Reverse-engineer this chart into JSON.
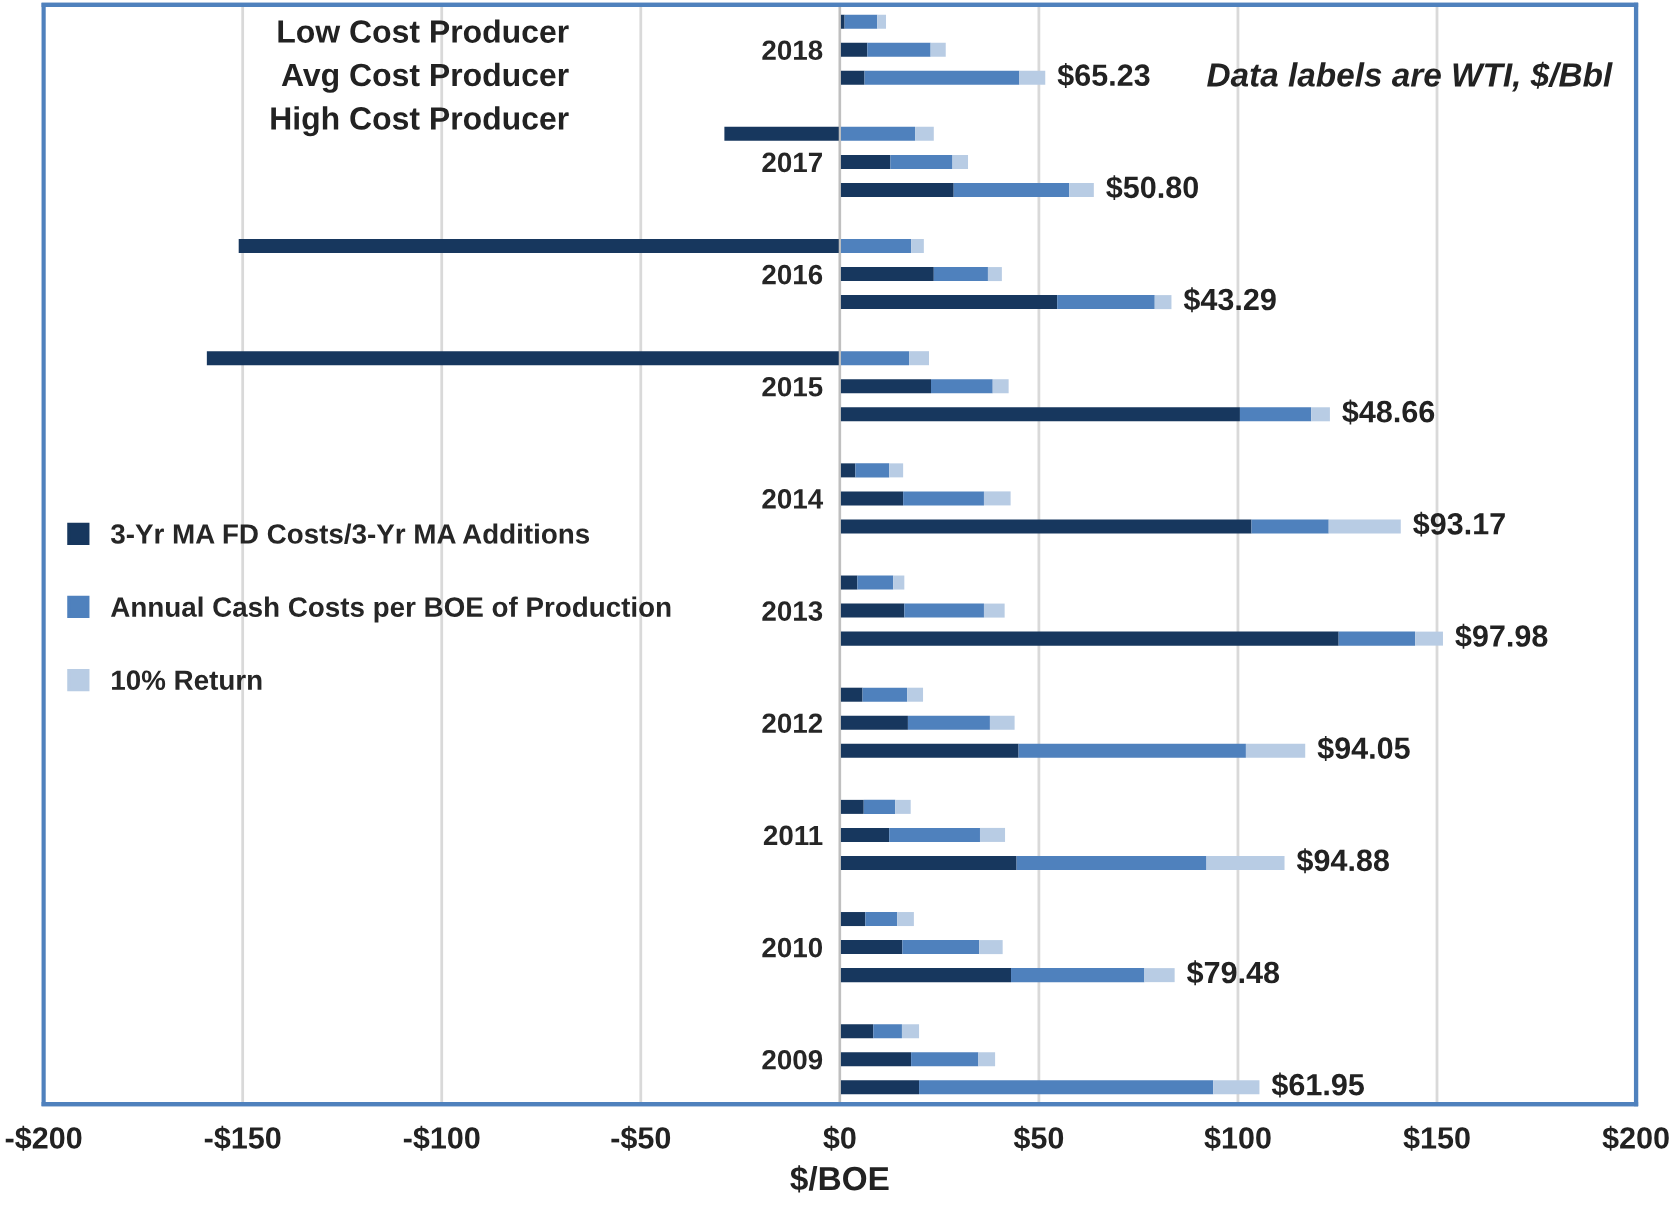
{
  "chart_data": {
    "type": "bar",
    "orientation": "horizontal",
    "stacked": true,
    "xlabel": "$/BOE",
    "annotations": [
      "Low Cost Producer",
      "Avg Cost Producer",
      "High Cost Producer",
      {
        "text": "$65.23",
        "x": 51.6
      },
      {
        "text": "$50.80",
        "x": 63.8
      },
      {
        "text": "$43.29",
        "x": 83.3
      },
      {
        "text": "$48.66",
        "x": 123.1
      },
      {
        "text": "$93.17",
        "x": 140.9
      },
      {
        "text": "$97.98",
        "x": 151.5
      },
      {
        "text": "$94.05",
        "x": 116.9
      },
      {
        "text": "$94.88",
        "x": 111.7
      },
      {
        "text": "$79.48",
        "x": 84.1
      },
      {
        "text": "$61.95",
        "x": 105.4
      },
      "Data labels are WTI, $/Bbl"
    ],
    "categories": [
      null,
      "2018",
      null,
      null,
      null,
      "2017",
      null,
      null,
      null,
      "2016",
      null,
      null,
      null,
      "2015",
      null,
      null,
      null,
      "2014",
      null,
      null,
      null,
      "2013",
      null,
      null,
      null,
      "2012",
      null,
      null,
      null,
      "2011",
      null,
      null,
      null,
      "2010",
      null,
      null,
      null,
      "2009",
      null
    ],
    "series": [
      {
        "name": "3-Yr MA FD Costs/3-Yr MA Additions",
        "color": "#17375e",
        "values": [
          1.2,
          6.9,
          6.2,
          null,
          -29,
          12.7,
          28.6,
          null,
          -151,
          23.6,
          54.6,
          null,
          -159,
          22.9,
          100.5,
          null,
          3.9,
          15.9,
          103.4,
          null,
          4.4,
          16.2,
          125.3,
          null,
          5.7,
          17.1,
          44.9,
          null,
          6.0,
          12.4,
          44.4,
          null,
          6.4,
          15.7,
          43.0,
          null,
          8.4,
          17.9,
          19.9
        ]
      },
      {
        "name": "Annual Cash Costs per BOE of Production",
        "color": "#4f81bd",
        "values": [
          8.2,
          15.9,
          38.9,
          null,
          18.9,
          15.6,
          29.0,
          null,
          17.9,
          13.6,
          24.5,
          null,
          17.4,
          15.5,
          17.9,
          null,
          8.5,
          20.3,
          19.4,
          null,
          9.0,
          20.0,
          19.2,
          null,
          11.2,
          20.6,
          57.1,
          null,
          7.9,
          22.8,
          47.7,
          null,
          8.0,
          19.3,
          33.5,
          null,
          7.2,
          16.9,
          73.9
        ]
      },
      {
        "name": "10% Return",
        "color": "#b8cce4",
        "values": [
          2.2,
          3.8,
          6.5,
          null,
          4.7,
          3.9,
          6.2,
          null,
          3.2,
          3.5,
          4.2,
          null,
          5.0,
          4.0,
          4.7,
          null,
          3.5,
          6.7,
          18.1,
          null,
          2.8,
          5.2,
          7.0,
          null,
          4.0,
          6.2,
          14.9,
          null,
          3.9,
          6.3,
          19.6,
          null,
          4.2,
          5.9,
          7.6,
          null,
          4.3,
          4.2,
          11.6
        ]
      }
    ],
    "xlim": [
      -200,
      200
    ],
    "xticks": [
      {
        "value": -200,
        "label": "-$200"
      },
      {
        "value": -150,
        "label": "-$150"
      },
      {
        "value": -100,
        "label": "-$100"
      },
      {
        "value": -50,
        "label": "-$50"
      },
      {
        "value": 0,
        "label": "$0"
      },
      {
        "value": 50,
        "label": "$50"
      },
      {
        "value": 100,
        "label": "$100"
      },
      {
        "value": 150,
        "label": "$150"
      },
      {
        "value": 200,
        "label": "$200"
      }
    ],
    "grid": "x",
    "legend": "left"
  }
}
